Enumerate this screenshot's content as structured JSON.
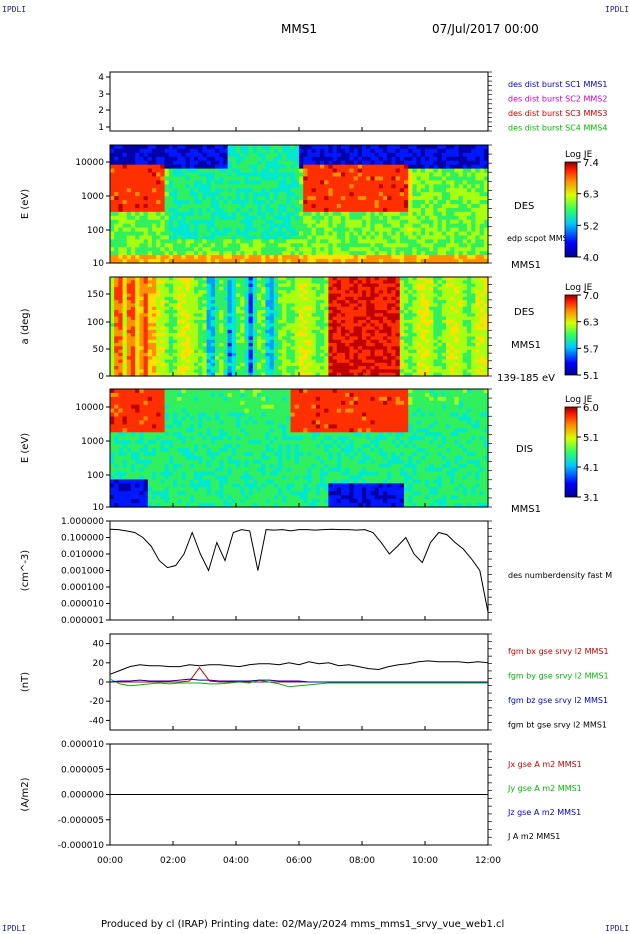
{
  "corners": {
    "top_left": "IPDLI",
    "top_right": "IPDLI",
    "bottom_left": "IPDLI",
    "bottom_right": "IPDLI"
  },
  "header": {
    "spacecraft": "MMS1",
    "datetime": "07/Jul/2017 00:00"
  },
  "footer": {
    "text": "Produced by cl (IRAP)   Printing date: 02/May/2024   mms_mms1_srvy_vue_web1.cl"
  },
  "colors": {
    "blue": "#0000cc",
    "magenta": "#cc00cc",
    "red": "#cc0000",
    "green": "#00bb00",
    "black": "#000000"
  },
  "chart_data": [
    {
      "type": "line",
      "panel": "burst-indicator",
      "yticks": [
        "4",
        "3",
        "2",
        "1"
      ],
      "legend": [
        {
          "text": "des dist burst SC1 MMS1",
          "color": "#0000cc"
        },
        {
          "text": "des dist burst SC2 MMS2",
          "color": "#cc00cc"
        },
        {
          "text": "des dist burst SC3 MMS3",
          "color": "#cc0000"
        },
        {
          "text": "des dist burst SC4 MMS4",
          "color": "#00bb00"
        }
      ]
    },
    {
      "type": "heatmap",
      "panel": "des-energy-spectrogram",
      "ylabel": "E (eV)",
      "yticks": [
        "10000",
        "1000",
        "100",
        "10"
      ],
      "labels": [
        "DES",
        "edp scpot MMS1",
        "MMS1"
      ],
      "colorbar": {
        "title": "Log JE",
        "ticks": [
          "7.4",
          "6.3",
          "5.2",
          "4.0"
        ]
      }
    },
    {
      "type": "heatmap",
      "panel": "des-pitch-angle",
      "ylabel": "a (deg)",
      "yticks": [
        "150",
        "100",
        "50",
        "0"
      ],
      "labels": [
        "DES",
        "MMS1",
        "139-185 eV"
      ],
      "colorbar": {
        "title": "Log JE",
        "ticks": [
          "7.0",
          "6.3",
          "5.7",
          "5.1"
        ]
      }
    },
    {
      "type": "heatmap",
      "panel": "dis-energy-spectrogram",
      "ylabel": "E (eV)",
      "yticks": [
        "10000",
        "1000",
        "100",
        "10"
      ],
      "labels": [
        "DIS",
        "MMS1"
      ],
      "colorbar": {
        "title": "Log JE",
        "ticks": [
          "6.0",
          "5.1",
          "4.1",
          "3.1"
        ]
      }
    },
    {
      "type": "line",
      "panel": "density",
      "ylabel": "(cm^-3)",
      "yticks": [
        "1.000000",
        "0.100000",
        "0.010000",
        "0.001000",
        "0.000100",
        "0.000010",
        "0.000001"
      ],
      "legend": [
        {
          "text": "des numberdensity fast M",
          "color": "#000000"
        }
      ],
      "series": [
        {
          "values": [
            0.32,
            0.3,
            0.25,
            0.2,
            0.1,
            0.03,
            0.004,
            0.0015,
            0.002,
            0.01,
            0.2,
            0.01,
            0.001,
            0.05,
            0.004,
            0.2,
            0.3,
            0.25,
            0.001,
            0.3,
            0.28,
            0.3,
            0.25,
            0.3,
            0.3,
            0.28,
            0.3,
            0.32,
            0.3,
            0.3,
            0.28,
            0.3,
            0.2,
            0.05,
            0.01,
            0.03,
            0.1,
            0.01,
            0.003,
            0.05,
            0.2,
            0.15,
            0.05,
            0.02,
            0.005,
            0.001,
            3e-06
          ]
        }
      ]
    },
    {
      "type": "line",
      "panel": "magnetic-field",
      "ylabel": "(nT)",
      "yticks": [
        "40",
        "20",
        "0",
        "-20",
        "-40"
      ],
      "ylim": [
        -50,
        50
      ],
      "legend": [
        {
          "text": "fgm bx gse srvy l2 MMS1",
          "color": "#cc0000"
        },
        {
          "text": "fgm by gse srvy l2 MMS1",
          "color": "#00bb00"
        },
        {
          "text": "fgm bz gse srvy l2 MMS1",
          "color": "#0000cc"
        },
        {
          "text": "fgm bt gse srvy l2 MMS1",
          "color": "#000000"
        }
      ],
      "series": [
        {
          "name": "fgm bt gse srvy l2 MMS1",
          "values": [
            8,
            12,
            16,
            18,
            17,
            17,
            16,
            16,
            18,
            17,
            18,
            18,
            17,
            16,
            18,
            19,
            19,
            18,
            20,
            18,
            21,
            19,
            20,
            17,
            18,
            16,
            14,
            13,
            16,
            18,
            19,
            21,
            22,
            21,
            21,
            21,
            20,
            21,
            20
          ]
        },
        {
          "name": "fgm bx gse srvy l2 MMS1",
          "values": [
            0,
            0,
            0,
            0,
            0,
            0,
            0,
            0,
            1,
            15,
            1,
            0,
            0,
            0,
            0,
            0,
            0,
            0,
            0,
            0,
            0,
            0,
            0,
            0,
            0,
            0,
            0,
            0,
            0,
            0,
            0,
            0,
            0,
            0,
            0,
            0,
            0,
            0,
            0
          ]
        },
        {
          "name": "fgm by gse srvy l2 MMS1",
          "values": [
            3,
            -2,
            -4,
            -3,
            -2,
            -1,
            -2,
            -1,
            -1,
            -1,
            -2,
            -2,
            -1,
            0,
            -1,
            2,
            0,
            -2,
            -5,
            -4,
            -3,
            -2,
            -1,
            -1,
            -1,
            -1,
            -1,
            -1,
            -1,
            -1,
            -1,
            -1,
            -1,
            -1,
            -1,
            -1,
            -1,
            -1,
            -1
          ]
        },
        {
          "name": "fgm bz gse srvy l2 MMS1",
          "values": [
            0,
            1,
            1,
            2,
            1,
            1,
            1,
            2,
            3,
            2,
            2,
            1,
            1,
            1,
            1,
            2,
            2,
            1,
            1,
            1,
            0,
            0,
            0,
            0,
            0,
            0,
            0,
            0,
            0,
            0,
            0,
            0,
            0,
            0,
            0,
            0,
            0,
            0,
            0
          ]
        }
      ]
    },
    {
      "type": "line",
      "panel": "current-density",
      "ylabel": "(A/m2)",
      "yticks": [
        "0.000010",
        "0.000005",
        "0.000000",
        "-0.000005",
        "-0.000010"
      ],
      "ylim": [
        -1e-05,
        1e-05
      ],
      "xticks": [
        "00:00",
        "02:00",
        "04:00",
        "06:00",
        "08:00",
        "10:00",
        "12:00"
      ],
      "legend": [
        {
          "text": "Jx gse A m2 MMS1",
          "color": "#cc0000"
        },
        {
          "text": "Jy gse A m2 MMS1",
          "color": "#00bb00"
        },
        {
          "text": "Jz gse A m2 MMS1",
          "color": "#0000cc"
        },
        {
          "text": "J A m2 MMS1",
          "color": "#000000"
        }
      ]
    }
  ]
}
